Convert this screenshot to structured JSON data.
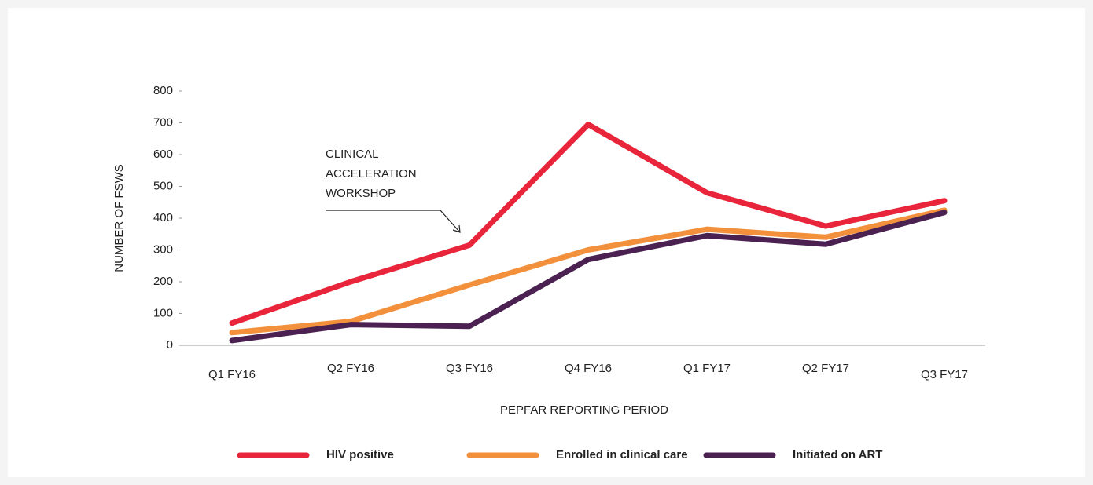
{
  "chart_data": {
    "type": "line",
    "ylabel": "NUMBER OF FSWS",
    "xlabel": "PEPFAR REPORTING PERIOD",
    "annotation": [
      "CLINICAL",
      "ACCELERATION",
      "WORKSHOP"
    ],
    "categories": [
      "Q1 FY16",
      "Q2 FY16",
      "Q3 FY16",
      "Q4 FY16",
      "Q1 FY17",
      "Q2 FY17",
      "Q3 FY17"
    ],
    "series": [
      {
        "name": "HIV positive",
        "color": "#e8253a",
        "values": [
          70,
          200,
          315,
          695,
          480,
          375,
          455
        ]
      },
      {
        "name": "Enrolled in clinical care",
        "color": "#f3903b",
        "values": [
          40,
          75,
          190,
          300,
          365,
          340,
          425
        ]
      },
      {
        "name": "Initiated on ART",
        "color": "#4a2150",
        "values": [
          15,
          65,
          60,
          270,
          345,
          318,
          418
        ]
      }
    ],
    "ylim": [
      0,
      800
    ],
    "yticks": [
      0,
      100,
      200,
      300,
      400,
      500,
      600,
      700,
      800
    ],
    "grid": false,
    "legend": "bottom"
  }
}
